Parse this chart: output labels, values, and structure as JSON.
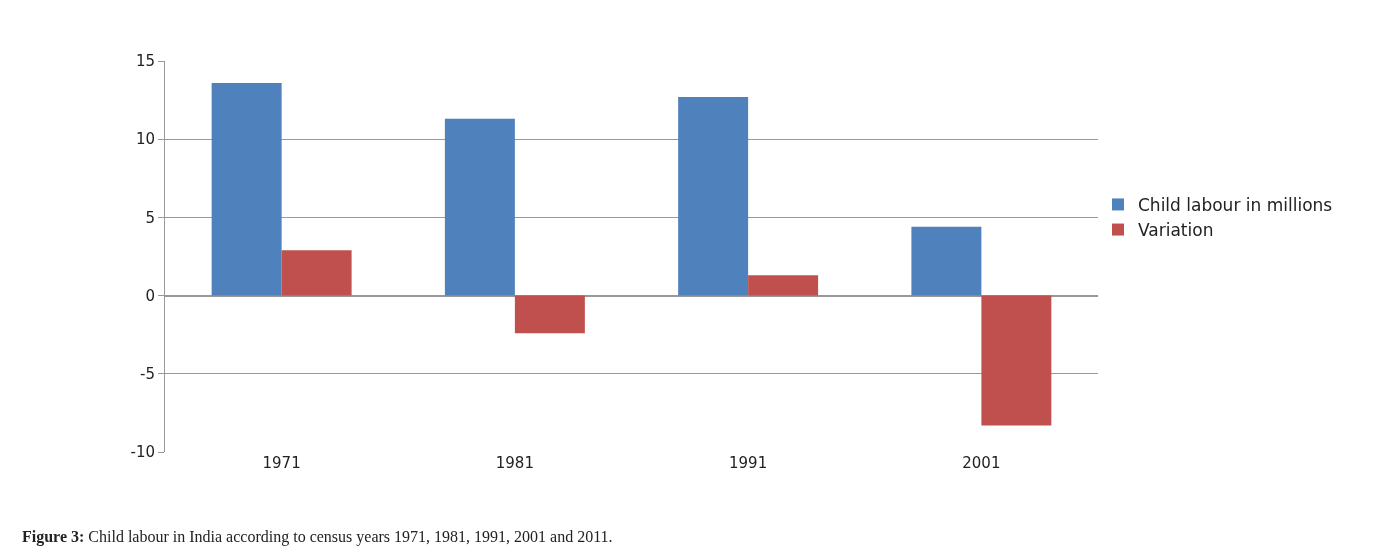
{
  "chart_data": {
    "type": "bar",
    "categories": [
      "1971",
      "1981",
      "1991",
      "2001"
    ],
    "series": [
      {
        "name": "Child labour in millions",
        "color": "#4f81bd",
        "values": [
          13.6,
          11.3,
          12.7,
          4.4
        ]
      },
      {
        "name": "Variation",
        "color": "#c0504d",
        "values": [
          2.9,
          -2.4,
          1.3,
          -8.3
        ]
      }
    ],
    "ylim": [
      -10,
      15
    ],
    "yticks": [
      -10,
      -5,
      0,
      5,
      10,
      15
    ],
    "grid": "y",
    "legend": "right",
    "annotations": [
      "Figure 3: Child labour in India according to census years 1971, 1981, 1991, 2001 and 2011."
    ]
  }
}
